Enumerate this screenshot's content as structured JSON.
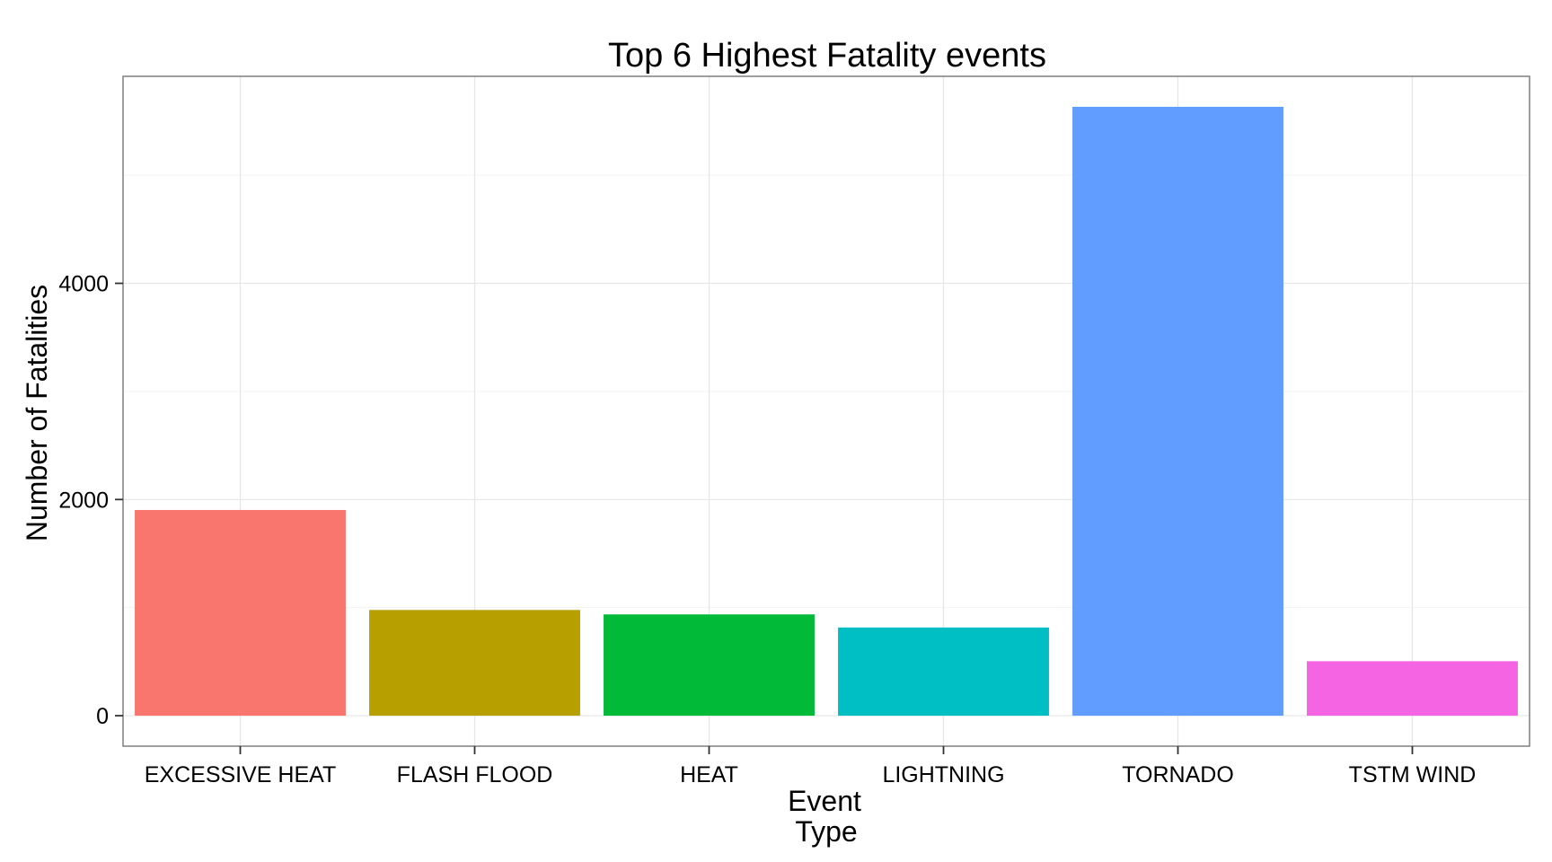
{
  "chart_data": {
    "type": "bar",
    "title": "Top 6 Highest Fatality events",
    "xlabel_lines": [
      "Event",
      "Type"
    ],
    "ylabel": "Number of Fatalities",
    "categories": [
      "EXCESSIVE HEAT",
      "FLASH FLOOD",
      "HEAT",
      "LIGHTNING",
      "TORNADO",
      "TSTM WIND"
    ],
    "values": [
      1903,
      978,
      937,
      816,
      5633,
      504
    ],
    "colors": [
      "#F8766D",
      "#B79F00",
      "#00BA38",
      "#00BFC4",
      "#619CFF",
      "#F564E3"
    ],
    "y_ticks": [
      0,
      2000,
      4000
    ],
    "ylim": [
      -282,
      5915
    ],
    "grid": true,
    "legend": "none"
  }
}
